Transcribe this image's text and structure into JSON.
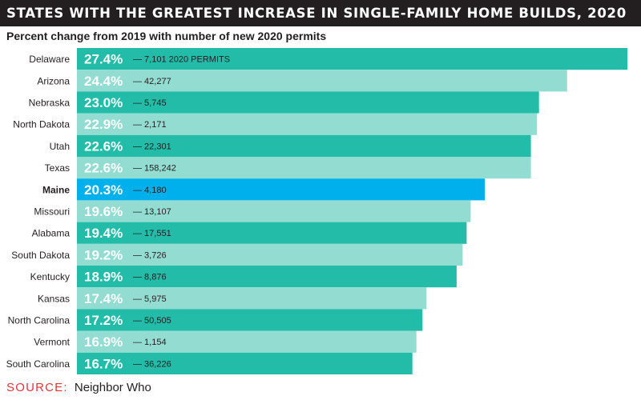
{
  "title": "STATES WITH THE GREATEST INCREASE IN SINGLE-FAMILY HOME BUILDS, 2020",
  "subtitle": "Percent change from 2019 with number of new 2020 permits",
  "source_label": "SOURCE:",
  "source_text": "Neighbor Who",
  "colors": {
    "bar_dark": "#22bca8",
    "bar_light": "#93dcd1",
    "bar_highlight": "#00b0ec",
    "text_dark": "#231f20",
    "source_red": "#e4343a"
  },
  "chart_data": {
    "type": "bar",
    "orientation": "horizontal",
    "categories": [
      "Delaware",
      "Arizona",
      "Nebraska",
      "North Dakota",
      "Utah",
      "Texas",
      "Maine",
      "Missouri",
      "Alabama",
      "South Dakota",
      "Kentucky",
      "Kansas",
      "North Carolina",
      "Vermont",
      "South Carolina"
    ],
    "values": [
      27.4,
      24.4,
      23.0,
      22.9,
      22.6,
      22.6,
      20.3,
      19.6,
      19.4,
      19.2,
      18.9,
      17.4,
      17.2,
      16.9,
      16.7
    ],
    "value_labels": [
      "27.4%",
      "24.4%",
      "23.0%",
      "22.9%",
      "22.6%",
      "22.6%",
      "20.3%",
      "19.6%",
      "19.4%",
      "19.2%",
      "18.9%",
      "17.4%",
      "17.2%",
      "16.9%",
      "16.7%"
    ],
    "permit_labels": [
      "— 7,101 2020 PERMITS",
      "— 42,277",
      "— 5,745",
      "— 2,171",
      "— 22,301",
      "— 158,242",
      "— 4,180",
      "— 13,107",
      "— 17,551",
      "— 3,726",
      "— 8,876",
      "— 5,975",
      "— 50,505",
      "— 1,154",
      "— 36,226"
    ],
    "permits": [
      7101,
      42277,
      5745,
      2171,
      22301,
      158242,
      4180,
      13107,
      17551,
      3726,
      8876,
      5975,
      50505,
      1154,
      36226
    ],
    "highlight": "Maine",
    "xlim": [
      0,
      27.4
    ],
    "grid": false,
    "legend": "none"
  }
}
